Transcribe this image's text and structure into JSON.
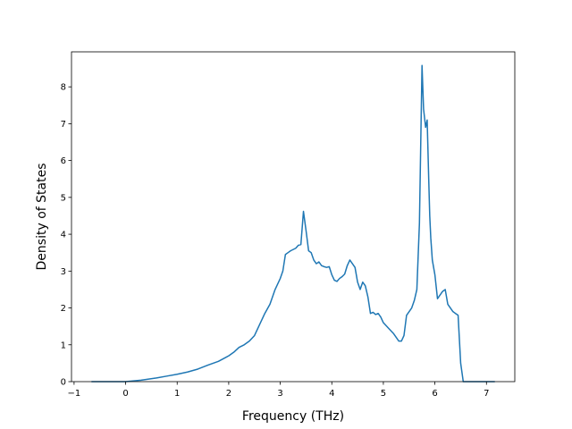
{
  "chart_data": {
    "type": "line",
    "title": "",
    "xlabel": "Frequency (THz)",
    "ylabel": "Density of States",
    "xlim": [
      -1.05,
      7.55
    ],
    "ylim": [
      0,
      8.95
    ],
    "xticks": [
      -1,
      0,
      1,
      2,
      3,
      4,
      5,
      6,
      7
    ],
    "yticks": [
      0,
      1,
      2,
      3,
      4,
      5,
      6,
      7,
      8
    ],
    "xtick_labels": [
      "−1",
      "0",
      "1",
      "2",
      "3",
      "4",
      "5",
      "6",
      "7"
    ],
    "ytick_labels": [
      "0",
      "1",
      "2",
      "3",
      "4",
      "5",
      "6",
      "7",
      "8"
    ],
    "grid": false,
    "line_color": "#1f77b4",
    "series": [
      {
        "x": [
          -0.65,
          0.0,
          0.3,
          0.6,
          0.8,
          1.0,
          1.2,
          1.4,
          1.6,
          1.8,
          2.0,
          2.1,
          2.2,
          2.3,
          2.4,
          2.5,
          2.6,
          2.7,
          2.8,
          2.9,
          3.0,
          3.05,
          3.1,
          3.15,
          3.2,
          3.3,
          3.35,
          3.4,
          3.45,
          3.5,
          3.55,
          3.6,
          3.65,
          3.7,
          3.75,
          3.8,
          3.85,
          3.9,
          3.95,
          4.0,
          4.05,
          4.1,
          4.15,
          4.2,
          4.25,
          4.3,
          4.35,
          4.4,
          4.45,
          4.5,
          4.55,
          4.6,
          4.65,
          4.7,
          4.75,
          4.8,
          4.85,
          4.9,
          4.95,
          5.0,
          5.1,
          5.2,
          5.3,
          5.35,
          5.4,
          5.45,
          5.5,
          5.55,
          5.6,
          5.65,
          5.7,
          5.75,
          5.78,
          5.82,
          5.85,
          5.88,
          5.9,
          5.92,
          5.95,
          6.0,
          6.05,
          6.1,
          6.15,
          6.2,
          6.25,
          6.3,
          6.35,
          6.4,
          6.45,
          6.5,
          6.52,
          6.55,
          6.6,
          7.15
        ],
        "y": [
          0.0,
          0.0,
          0.04,
          0.1,
          0.15,
          0.2,
          0.26,
          0.34,
          0.45,
          0.55,
          0.7,
          0.8,
          0.93,
          1.0,
          1.1,
          1.25,
          1.55,
          1.85,
          2.1,
          2.5,
          2.8,
          3.0,
          3.45,
          3.5,
          3.55,
          3.62,
          3.7,
          3.72,
          4.62,
          4.1,
          3.55,
          3.5,
          3.3,
          3.2,
          3.25,
          3.15,
          3.12,
          3.1,
          3.12,
          2.9,
          2.75,
          2.72,
          2.8,
          2.85,
          2.92,
          3.15,
          3.3,
          3.2,
          3.1,
          2.7,
          2.5,
          2.7,
          2.6,
          2.3,
          1.85,
          1.88,
          1.82,
          1.85,
          1.75,
          1.6,
          1.45,
          1.3,
          1.1,
          1.1,
          1.25,
          1.8,
          1.9,
          2.0,
          2.2,
          2.5,
          4.3,
          8.58,
          7.4,
          6.9,
          7.1,
          5.5,
          4.5,
          3.9,
          3.3,
          2.9,
          2.25,
          2.35,
          2.45,
          2.5,
          2.1,
          2.0,
          1.9,
          1.85,
          1.8,
          0.5,
          0.3,
          0.0,
          0.0,
          0.0
        ]
      }
    ]
  }
}
